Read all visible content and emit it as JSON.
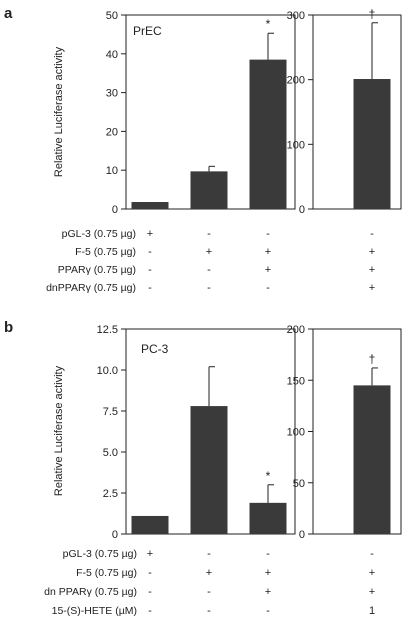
{
  "chart_data": [
    {
      "panel": "a",
      "type": "bar",
      "title": "PrEC",
      "ylabel": "Relative Luciferase activity",
      "main": {
        "ylim": [
          0,
          50
        ],
        "yticks": [
          0,
          10,
          20,
          30,
          40,
          50
        ],
        "values": [
          1.8,
          9.7,
          38.5
        ],
        "errors": [
          0,
          1.3,
          6.8
        ],
        "marks": [
          "",
          "",
          "*"
        ]
      },
      "inset": {
        "ylim": [
          0,
          300
        ],
        "yticks": [
          0,
          100,
          200,
          300
        ],
        "values": [
          201
        ],
        "errors": [
          87
        ],
        "marks": [
          "†"
        ]
      },
      "treatments": [
        {
          "name": "pGL-3 (0.75 µg)",
          "signs": [
            "+",
            "-",
            "-",
            "-"
          ]
        },
        {
          "name": "F-5 (0.75 µg)",
          "signs": [
            "-",
            "+",
            "+",
            "+"
          ]
        },
        {
          "name": "PPARγ (0.75 µg)",
          "signs": [
            "-",
            "-",
            "+",
            "+"
          ]
        },
        {
          "name": "dnPPARγ (0.75 µg)",
          "signs": [
            "-",
            "-",
            "-",
            "+"
          ]
        }
      ]
    },
    {
      "panel": "b",
      "type": "bar",
      "title": "PC-3",
      "ylabel": "Relative Luciferase activity",
      "main": {
        "ylim": [
          0,
          12.5
        ],
        "yticks": [
          0,
          2.5,
          5.0,
          7.5,
          10.0,
          12.5
        ],
        "ytick_labels": [
          "0",
          "2.5",
          "5.0",
          "7.5",
          "10.0",
          "12.5"
        ],
        "values": [
          1.1,
          7.8,
          1.9
        ],
        "errors": [
          0,
          2.4,
          1.1
        ],
        "marks": [
          "",
          "",
          "*"
        ]
      },
      "inset": {
        "ylim": [
          0,
          200
        ],
        "yticks": [
          0,
          50,
          100,
          150,
          200
        ],
        "values": [
          145
        ],
        "errors": [
          17
        ],
        "marks": [
          "†"
        ]
      },
      "treatments": [
        {
          "name": "pGL-3 (0.75 µg)",
          "signs": [
            "+",
            "-",
            "-",
            "-"
          ]
        },
        {
          "name": "F-5 (0.75 µg)",
          "signs": [
            "-",
            "+",
            "+",
            "+"
          ]
        },
        {
          "name": "dn PPARγ (0.75 µg)",
          "signs": [
            "-",
            "-",
            "+",
            "+"
          ]
        },
        {
          "name": "15-(S)-HETE (µM)",
          "signs": [
            "-",
            "-",
            "-",
            "1"
          ]
        }
      ]
    }
  ],
  "colors": {
    "bar": "#3a3a3a",
    "axis": "#222222"
  }
}
